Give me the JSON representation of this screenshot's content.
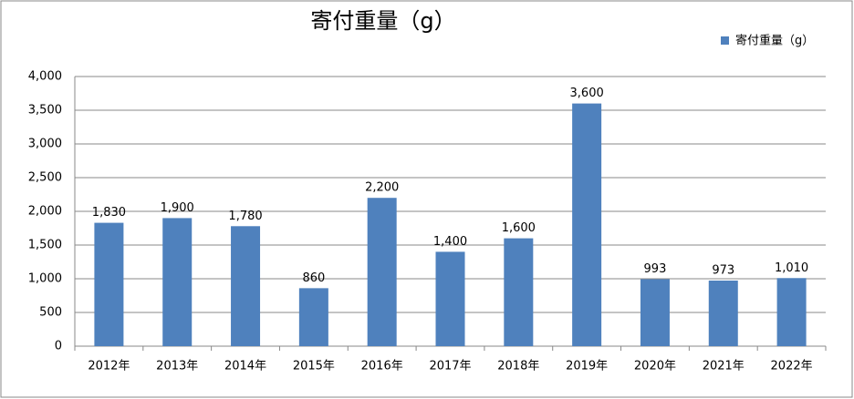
{
  "chart_data": {
    "type": "bar",
    "title": "寄付重量（g）",
    "categories": [
      "2012年",
      "2013年",
      "2014年",
      "2015年",
      "2016年",
      "2017年",
      "2018年",
      "2019年",
      "2020年",
      "2021年",
      "2022年"
    ],
    "series": [
      {
        "name": "寄付重量（g）",
        "color": "#4f81bd",
        "values": [
          1830,
          1900,
          1780,
          860,
          2200,
          1400,
          1600,
          3600,
          993,
          973,
          1010
        ],
        "value_labels": [
          "1,830",
          "1,900",
          "1,780",
          "860",
          "2,200",
          "1,400",
          "1,600",
          "3,600",
          "993",
          "973",
          "1,010"
        ]
      }
    ],
    "ylim": [
      0,
      4000
    ],
    "yticks": [
      0,
      500,
      {
        "value": 1000,
        "label": "1,000"
      },
      {
        "value": 1500,
        "label": "1,500"
      },
      {
        "value": 2000,
        "label": "2,000"
      },
      {
        "value": 2500,
        "label": "2,500"
      },
      {
        "value": 3000,
        "label": "3,000"
      },
      {
        "value": 3500,
        "label": "3,500"
      },
      {
        "value": 4000,
        "label": "4,000"
      }
    ],
    "grid": true,
    "legend": "top-right"
  }
}
